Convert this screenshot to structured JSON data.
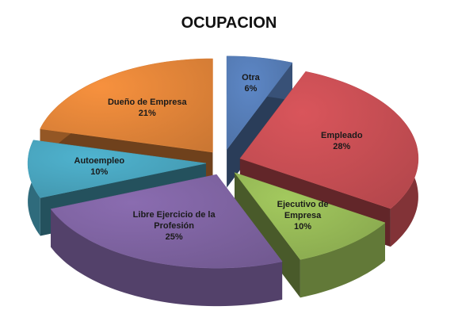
{
  "chart_data": {
    "type": "pie",
    "title": "OCUPACION",
    "categories": [
      "Otra",
      "Empleado",
      "Ejecutivo de Empresa",
      "Libre Ejercicio de la Profesión",
      "Autoempleo",
      "Dueño de Empresa"
    ],
    "values": [
      6,
      28,
      10,
      25,
      10,
      21
    ],
    "value_labels": [
      "6%",
      "28%",
      "10%",
      "25%",
      "10%",
      "21%"
    ],
    "colors": [
      "#5d87c6",
      "#d9555b",
      "#a3c95e",
      "#8a6cb0",
      "#4fb3cf",
      "#f7913e"
    ]
  }
}
